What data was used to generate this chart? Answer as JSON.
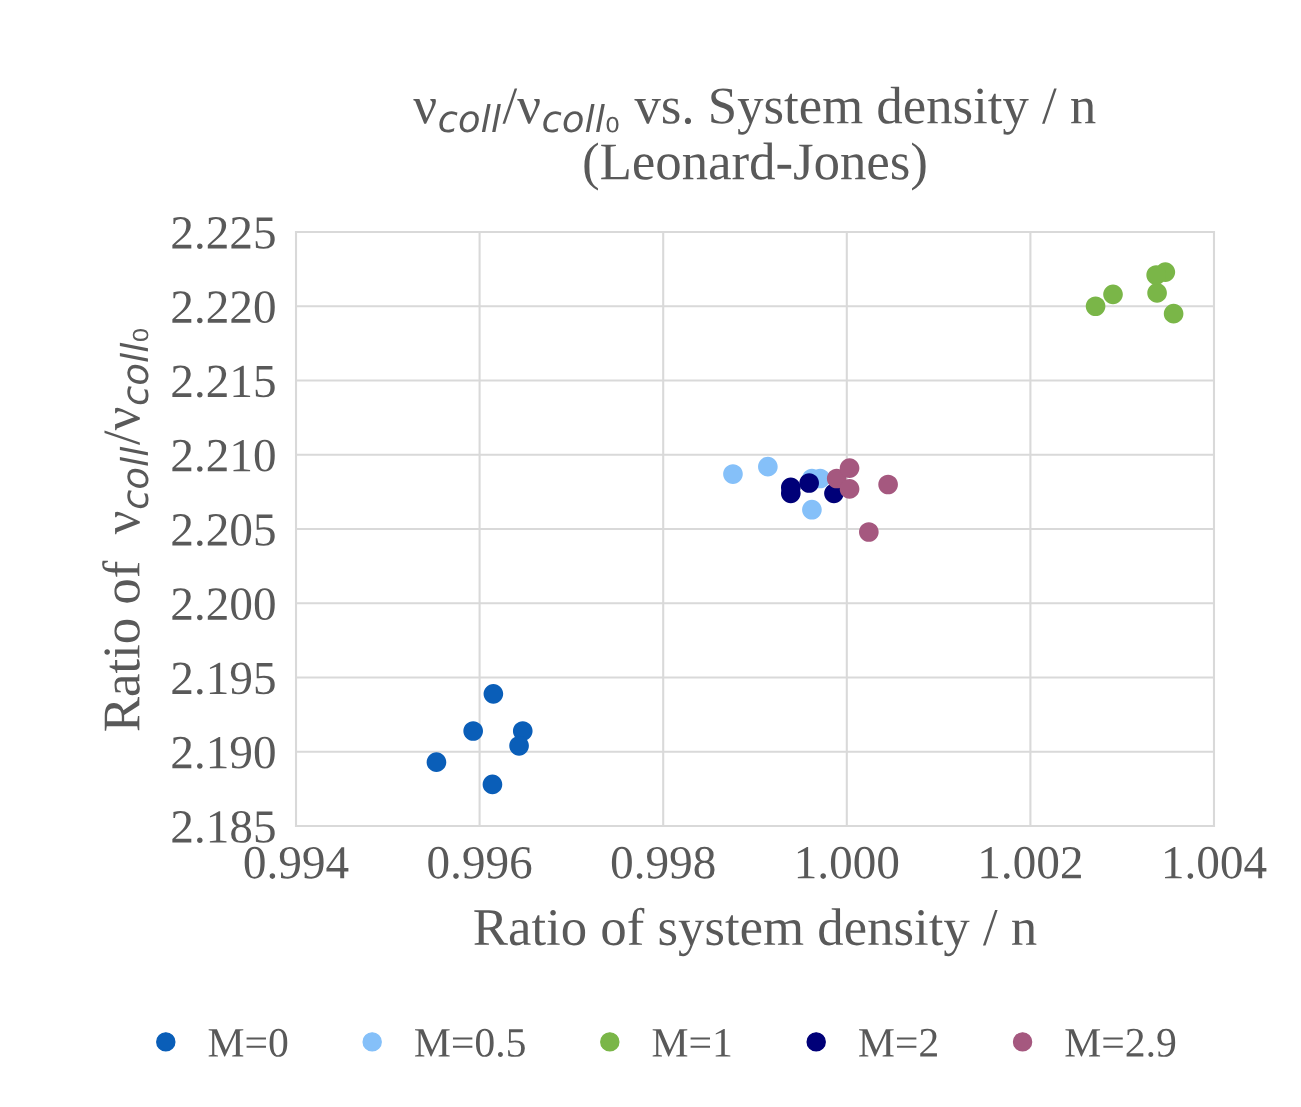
{
  "chart_data": {
    "type": "scatter",
    "title": "ν$_{coll}$/ν$_{coll₀}$ vs. System density / n\n(Leonard-Jones)",
    "xlabel": "Ratio of system density / n",
    "ylabel": "Ratio of  ν$_{coll}$/ν$_{coll₀}$",
    "xlim": [
      0.994,
      1.004
    ],
    "xticks": [
      {
        "value": 0.994,
        "label": "0.994"
      },
      {
        "value": 0.996,
        "label": "0.996"
      },
      {
        "value": 0.998,
        "label": "0.998"
      },
      {
        "value": 1.0,
        "label": "1.000"
      },
      {
        "value": 1.002,
        "label": "1.002"
      },
      {
        "value": 1.004,
        "label": "1.004"
      }
    ],
    "ylim": [
      2.185,
      2.225
    ],
    "yticks": [
      {
        "value": 2.185,
        "label": "2.185"
      },
      {
        "value": 2.19,
        "label": "2.190"
      },
      {
        "value": 2.195,
        "label": "2.195"
      },
      {
        "value": 2.2,
        "label": "2.200"
      },
      {
        "value": 2.205,
        "label": "2.205"
      },
      {
        "value": 2.21,
        "label": "2.210"
      },
      {
        "value": 2.215,
        "label": "2.215"
      },
      {
        "value": 2.22,
        "label": "2.220"
      },
      {
        "value": 2.225,
        "label": "2.225"
      }
    ],
    "grid": true,
    "legend": "bottom",
    "marker": "circle",
    "series": [
      {
        "name": "M=0",
        "color": "#0a5eb8",
        "x": [
          0.99553,
          0.99593,
          0.99615,
          0.99647,
          0.99643,
          0.99614
        ],
        "values": [
          2.1893,
          2.1914,
          2.1939,
          2.1914,
          2.1904,
          2.1878
        ]
      },
      {
        "name": "M=0.5",
        "color": "#85c0f9",
        "x": [
          0.99876,
          0.99914,
          0.99962,
          0.99971,
          0.99962
        ],
        "values": [
          2.2087,
          2.2092,
          2.2063,
          2.2084,
          2.2084
        ]
      },
      {
        "name": "M=1",
        "color": "#7ab648",
        "x": [
          1.00271,
          1.0029,
          1.00338,
          1.00347,
          1.00337,
          1.00356
        ],
        "values": [
          2.22,
          2.2208,
          2.2209,
          2.2223,
          2.2221,
          2.2195
        ]
      },
      {
        "name": "M=2",
        "color": "#000078",
        "x": [
          0.99939,
          0.99939,
          0.99959,
          0.99986
        ],
        "values": [
          2.2078,
          2.2074,
          2.2081,
          2.2074
        ]
      },
      {
        "name": "M=2.9",
        "color": "#a5587f",
        "x": [
          0.99989,
          1.00003,
          1.00003,
          1.00045,
          1.00024
        ],
        "values": [
          2.2084,
          2.2091,
          2.2077,
          2.208,
          2.2048
        ]
      }
    ]
  }
}
